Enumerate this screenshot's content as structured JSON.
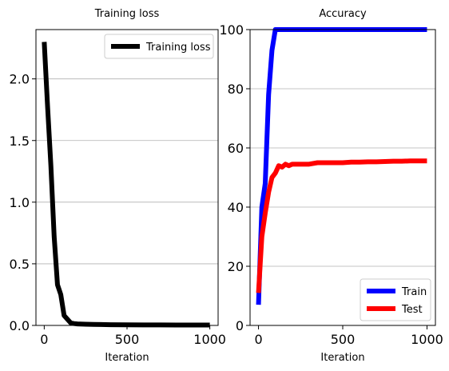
{
  "chart_data": [
    {
      "type": "line",
      "title": "Training loss",
      "xlabel": "Iteration",
      "ylabel": "",
      "xlim": [
        -50,
        1050
      ],
      "ylim": [
        0,
        2.4
      ],
      "xticks": [
        0,
        500,
        1000
      ],
      "xtick_labels": [
        "0",
        "500",
        "1000"
      ],
      "yticks": [
        0.0,
        0.5,
        1.0,
        1.5,
        2.0
      ],
      "ytick_labels": [
        "0.0",
        "0.5",
        "1.0",
        "1.5",
        "2.0"
      ],
      "grid": "y",
      "legend_position": "top-right",
      "series": [
        {
          "name": "Training loss",
          "color": "#000000",
          "x": [
            0,
            20,
            40,
            60,
            80,
            100,
            120,
            140,
            160,
            180,
            200,
            250,
            300,
            400,
            500,
            600,
            700,
            800,
            900,
            1000
          ],
          "y": [
            2.3,
            1.78,
            1.3,
            0.72,
            0.33,
            0.25,
            0.08,
            0.05,
            0.02,
            0.015,
            0.012,
            0.01,
            0.008,
            0.006,
            0.005,
            0.004,
            0.004,
            0.003,
            0.003,
            0.003
          ]
        }
      ]
    },
    {
      "type": "line",
      "title": "Accuracy",
      "xlabel": "Iteration",
      "ylabel": "",
      "xlim": [
        -50,
        1050
      ],
      "ylim": [
        0,
        100
      ],
      "xticks": [
        0,
        500,
        1000
      ],
      "xtick_labels": [
        "0",
        "500",
        "1000"
      ],
      "yticks": [
        0,
        20,
        40,
        60,
        80,
        100
      ],
      "ytick_labels": [
        "0",
        "20",
        "40",
        "60",
        "80",
        "100"
      ],
      "grid": "y",
      "legend_position": "bottom-right",
      "series": [
        {
          "name": "Train",
          "color": "#0000ff",
          "x": [
            0,
            20,
            40,
            60,
            80,
            100,
            150,
            200,
            300,
            400,
            500,
            600,
            700,
            800,
            900,
            1000
          ],
          "y": [
            7,
            40,
            48,
            78,
            93,
            100,
            100,
            100,
            100,
            100,
            100,
            100,
            100,
            100,
            100,
            100
          ]
        },
        {
          "name": "Test",
          "color": "#ff0000",
          "x": [
            0,
            20,
            40,
            60,
            80,
            100,
            120,
            140,
            160,
            180,
            200,
            250,
            300,
            350,
            400,
            450,
            500,
            550,
            600,
            650,
            700,
            750,
            800,
            850,
            900,
            950,
            1000
          ],
          "y": [
            11,
            30,
            38,
            45,
            50,
            51.5,
            54,
            53.5,
            54.5,
            54,
            54.5,
            54.5,
            54.5,
            55,
            55,
            55,
            55,
            55.2,
            55.2,
            55.3,
            55.3,
            55.4,
            55.5,
            55.5,
            55.6,
            55.6,
            55.6
          ]
        }
      ]
    }
  ]
}
